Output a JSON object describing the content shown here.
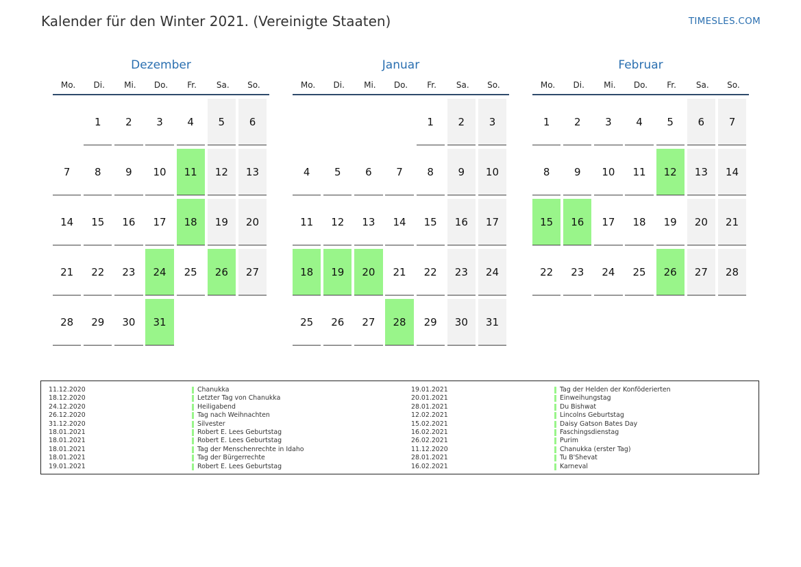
{
  "header": {
    "title": "Kalender für den Winter 2021. (Vereinigte Staaten)",
    "site": "TIMESLES.COM"
  },
  "weekdays": [
    "Mo.",
    "Di.",
    "Mi.",
    "Do.",
    "Fr.",
    "Sa.",
    "So."
  ],
  "colors": {
    "accent": "#2a6fb0",
    "holiday": "#99f58a",
    "weekend": "#f2f2f2"
  },
  "months": [
    {
      "name": "Dezember",
      "weeks": [
        [
          "",
          "1",
          "2",
          "3",
          "4",
          "5",
          "6"
        ],
        [
          "7",
          "8",
          "9",
          "10",
          "11",
          "12",
          "13"
        ],
        [
          "14",
          "15",
          "16",
          "17",
          "18",
          "19",
          "20"
        ],
        [
          "21",
          "22",
          "23",
          "24",
          "25",
          "26",
          "27"
        ],
        [
          "28",
          "29",
          "30",
          "31",
          "",
          "",
          ""
        ]
      ],
      "holidays": [
        "11",
        "18",
        "24",
        "26",
        "31"
      ]
    },
    {
      "name": "Januar",
      "weeks": [
        [
          "",
          "",
          "",
          "",
          "1",
          "2",
          "3"
        ],
        [
          "4",
          "5",
          "6",
          "7",
          "8",
          "9",
          "10"
        ],
        [
          "11",
          "12",
          "13",
          "14",
          "15",
          "16",
          "17"
        ],
        [
          "18",
          "19",
          "20",
          "21",
          "22",
          "23",
          "24"
        ],
        [
          "25",
          "26",
          "27",
          "28",
          "29",
          "30",
          "31"
        ]
      ],
      "holidays": [
        "18",
        "19",
        "20",
        "28"
      ]
    },
    {
      "name": "Februar",
      "weeks": [
        [
          "1",
          "2",
          "3",
          "4",
          "5",
          "6",
          "7"
        ],
        [
          "8",
          "9",
          "10",
          "11",
          "12",
          "13",
          "14"
        ],
        [
          "15",
          "16",
          "17",
          "18",
          "19",
          "20",
          "21"
        ],
        [
          "22",
          "23",
          "24",
          "25",
          "26",
          "27",
          "28"
        ]
      ],
      "holidays": [
        "12",
        "15",
        "16",
        "26"
      ]
    }
  ],
  "holiday_list": {
    "left": [
      {
        "date": "11.12.2020",
        "name": "Chanukka"
      },
      {
        "date": "18.12.2020",
        "name": "Letzter Tag von Chanukka"
      },
      {
        "date": "24.12.2020",
        "name": "Heiligabend"
      },
      {
        "date": "26.12.2020",
        "name": "Tag nach Weihnachten"
      },
      {
        "date": "31.12.2020",
        "name": "Silvester"
      },
      {
        "date": "18.01.2021",
        "name": "Robert E. Lees Geburtstag"
      },
      {
        "date": "18.01.2021",
        "name": "Robert E. Lees Geburtstag"
      },
      {
        "date": "18.01.2021",
        "name": "Tag der Menschenrechte in Idaho"
      },
      {
        "date": "18.01.2021",
        "name": "Tag der Bürgerrechte"
      },
      {
        "date": "19.01.2021",
        "name": "Robert E. Lees Geburtstag"
      }
    ],
    "right": [
      {
        "date": "19.01.2021",
        "name": "Tag der Helden der Konföderierten"
      },
      {
        "date": "20.01.2021",
        "name": "Einweihungstag"
      },
      {
        "date": "28.01.2021",
        "name": "Du Bishwat"
      },
      {
        "date": "12.02.2021",
        "name": "Lincolns Geburtstag"
      },
      {
        "date": "15.02.2021",
        "name": "Daisy Gatson Bates Day"
      },
      {
        "date": "16.02.2021",
        "name": "Faschingsdienstag"
      },
      {
        "date": "26.02.2021",
        "name": "Purim"
      },
      {
        "date": "11.12.2020",
        "name": "Chanukka (erster Tag)"
      },
      {
        "date": "28.01.2021",
        "name": "Tu B'Shevat"
      },
      {
        "date": "16.02.2021",
        "name": "Karneval"
      }
    ]
  }
}
